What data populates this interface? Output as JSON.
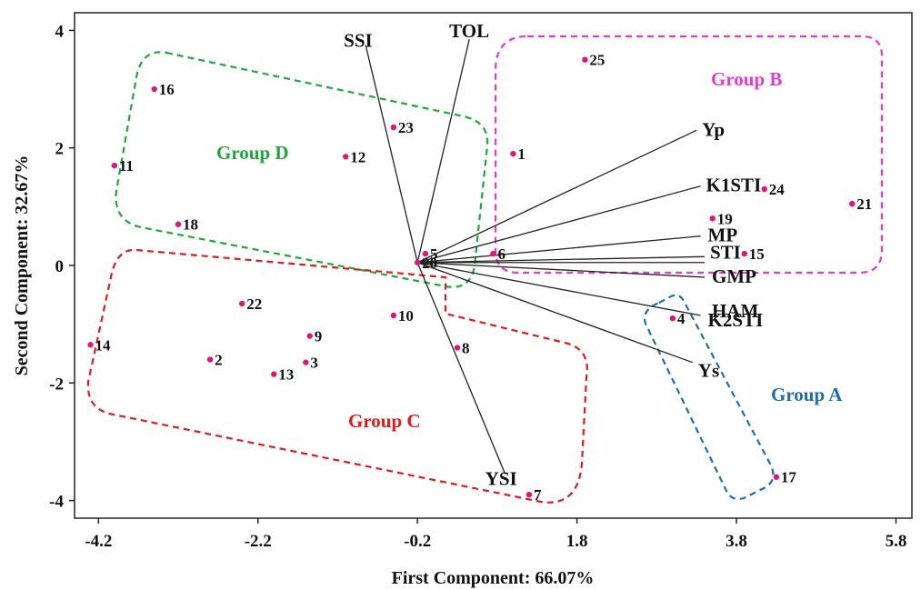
{
  "chart_data": {
    "type": "scatter",
    "subtype": "pca-biplot",
    "xlabel": "First Component: 66.07%",
    "ylabel": "Second Component: 32.67%",
    "xlim": [
      -4.5,
      6.0
    ],
    "ylim": [
      -4.3,
      4.3
    ],
    "x_ticks": [
      "-4.2",
      "-2.2",
      "-0.2",
      "1.8",
      "3.8",
      "5.8"
    ],
    "y_ticks": [
      "4",
      "2",
      "0",
      "-2",
      "-4"
    ],
    "grid": false,
    "point_color": "#e0157a",
    "vector_origin": [
      -0.2,
      0.05
    ],
    "points": [
      {
        "label": "1",
        "x": 1.0,
        "y": 1.9
      },
      {
        "label": "2",
        "x": -2.8,
        "y": -1.6
      },
      {
        "label": "3",
        "x": -1.6,
        "y": -1.65
      },
      {
        "label": "4",
        "x": 3.0,
        "y": -0.9
      },
      {
        "label": "5",
        "x": -0.1,
        "y": 0.2
      },
      {
        "label": "6",
        "x": 0.75,
        "y": 0.2
      },
      {
        "label": "7",
        "x": 1.2,
        "y": -3.9
      },
      {
        "label": "8",
        "x": 0.3,
        "y": -1.4
      },
      {
        "label": "9",
        "x": -1.55,
        "y": -1.2
      },
      {
        "label": "10",
        "x": -0.5,
        "y": -0.85
      },
      {
        "label": "11",
        "x": -4.0,
        "y": 1.7
      },
      {
        "label": "12",
        "x": -1.1,
        "y": 1.85
      },
      {
        "label": "13",
        "x": -2.0,
        "y": -1.85
      },
      {
        "label": "14",
        "x": -4.3,
        "y": -1.35
      },
      {
        "label": "15",
        "x": 3.9,
        "y": 0.2
      },
      {
        "label": "16",
        "x": -3.5,
        "y": 3.0
      },
      {
        "label": "17",
        "x": 4.3,
        "y": -3.6
      },
      {
        "label": "18",
        "x": -3.2,
        "y": 0.7
      },
      {
        "label": "19",
        "x": 3.5,
        "y": 0.8
      },
      {
        "label": "20",
        "x": -0.2,
        "y": 0.05
      },
      {
        "label": "21",
        "x": 5.25,
        "y": 1.05
      },
      {
        "label": "22",
        "x": -2.4,
        "y": -0.65
      },
      {
        "label": "23",
        "x": -0.5,
        "y": 2.35
      },
      {
        "label": "24",
        "x": 4.15,
        "y": 1.3
      },
      {
        "label": "25",
        "x": 1.9,
        "y": 3.5
      }
    ],
    "vectors": [
      {
        "name": "SSI",
        "x": -0.85,
        "y": 3.75
      },
      {
        "name": "TOL",
        "x": 0.45,
        "y": 3.85
      },
      {
        "name": "Yp",
        "x": 3.3,
        "y": 2.3
      },
      {
        "name": "K1STI",
        "x": 3.35,
        "y": 1.35
      },
      {
        "name": "MP",
        "x": 3.35,
        "y": 0.5
      },
      {
        "name": "STI",
        "x": 3.4,
        "y": 0.15
      },
      {
        "name": "GMP",
        "x": 3.4,
        "y": 0.05
      },
      {
        "name": "HAM",
        "x": 3.4,
        "y": -0.2
      },
      {
        "name": "K2STI",
        "x": 3.35,
        "y": -0.85
      },
      {
        "name": "Ys",
        "x": 3.25,
        "y": -1.65
      },
      {
        "name": "YSI",
        "x": 0.9,
        "y": -3.55
      }
    ],
    "groups": [
      {
        "name": "Group A",
        "color": "#1f6fb0"
      },
      {
        "name": "Group B",
        "color": "#e83ad0"
      },
      {
        "name": "Group C",
        "color": "#e01b1b"
      },
      {
        "name": "Group D",
        "color": "#1fa83a"
      }
    ]
  }
}
